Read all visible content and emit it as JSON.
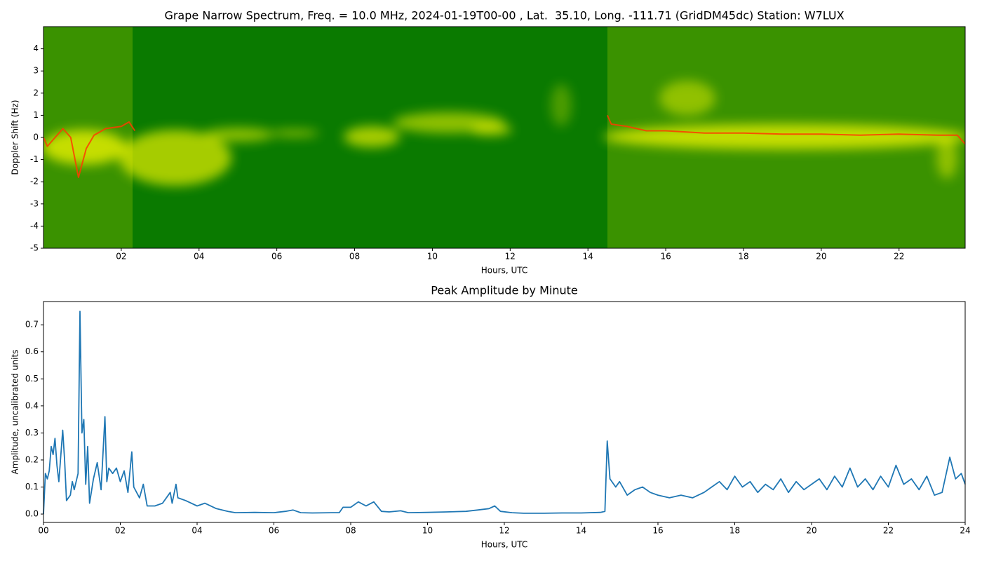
{
  "chart_data": [
    {
      "type": "spectrogram",
      "title": "Grape Narrow Spectrum, Freq. = 10.0 MHz, 2024-01-19T00-00 , Lat.  35.10, Long. -111.71 (GridDM45dc) Station: W7LUX",
      "xlabel": "Hours, UTC",
      "ylabel": "Doppler Shift (Hz)",
      "xlim": [
        0,
        23.7
      ],
      "ylim": [
        -5,
        5
      ],
      "xticks": [
        {
          "value": 2,
          "label": "02"
        },
        {
          "value": 4,
          "label": "04"
        },
        {
          "value": 6,
          "label": "06"
        },
        {
          "value": 8,
          "label": "08"
        },
        10,
        12,
        14,
        16,
        18,
        20,
        22
      ],
      "yticks": [
        -5,
        -4,
        -3,
        -2,
        -1,
        0,
        1,
        2,
        3,
        4
      ],
      "color": "#ff3a00",
      "x": [
        0,
        0.1,
        0.3,
        0.5,
        0.7,
        0.9,
        1.1,
        1.3,
        1.6,
        2.0,
        2.2,
        2.35,
        8,
        14.5,
        14.6,
        15,
        15.5,
        16,
        17,
        18,
        19,
        20,
        21,
        22,
        23,
        23.5,
        23.7
      ],
      "values": [
        0,
        -0.4,
        0,
        0.4,
        0,
        -1.8,
        -0.5,
        0.1,
        0.4,
        0.5,
        0.7,
        0.3,
        null,
        1.0,
        0.6,
        0.5,
        0.3,
        0.3,
        0.2,
        0.2,
        0.15,
        0.15,
        0.1,
        0.15,
        0.1,
        0.1,
        -0.3
      ]
    },
    {
      "type": "line",
      "title": "Peak Amplitude by Minute",
      "xlabel": "Hours, UTC",
      "ylabel": "Amplitude, uncalibrated units",
      "xlim": [
        0,
        24
      ],
      "ylim": [
        -0.031,
        0.786
      ],
      "xticks": [
        {
          "value": 0,
          "label": "00"
        },
        {
          "value": 2,
          "label": "02"
        },
        {
          "value": 4,
          "label": "04"
        },
        {
          "value": 6,
          "label": "06"
        },
        {
          "value": 8,
          "label": "08"
        },
        10,
        12,
        14,
        16,
        18,
        20,
        22,
        24
      ],
      "yticks": [
        {
          "value": 0,
          "label": "0.0"
        },
        0.1,
        0.2,
        0.3,
        0.4,
        0.5,
        0.6,
        0.7
      ],
      "color": "#1f77b4",
      "x": [
        0,
        0.05,
        0.1,
        0.15,
        0.2,
        0.25,
        0.3,
        0.35,
        0.4,
        0.5,
        0.55,
        0.6,
        0.7,
        0.75,
        0.8,
        0.9,
        0.95,
        1.0,
        1.05,
        1.1,
        1.15,
        1.2,
        1.3,
        1.4,
        1.5,
        1.6,
        1.65,
        1.7,
        1.8,
        1.9,
        2.0,
        2.1,
        2.2,
        2.3,
        2.35,
        2.5,
        2.6,
        2.7,
        2.9,
        3.1,
        3.3,
        3.35,
        3.45,
        3.5,
        3.7,
        4.0,
        4.2,
        4.5,
        4.8,
        5.0,
        5.5,
        6.0,
        6.3,
        6.5,
        6.7,
        7.0,
        7.5,
        7.7,
        7.8,
        8.0,
        8.2,
        8.4,
        8.6,
        8.8,
        9.0,
        9.3,
        9.5,
        10.0,
        10.5,
        11.0,
        11.3,
        11.6,
        11.75,
        11.9,
        12.2,
        12.5,
        13.0,
        13.5,
        14.0,
        14.5,
        14.62,
        14.68,
        14.75,
        14.9,
        15.0,
        15.2,
        15.4,
        15.6,
        15.8,
        16.0,
        16.3,
        16.6,
        16.9,
        17.2,
        17.4,
        17.6,
        17.8,
        18.0,
        18.2,
        18.4,
        18.6,
        18.8,
        19.0,
        19.2,
        19.4,
        19.6,
        19.8,
        20.0,
        20.2,
        20.4,
        20.6,
        20.8,
        21.0,
        21.2,
        21.4,
        21.6,
        21.8,
        22.0,
        22.2,
        22.4,
        22.6,
        22.8,
        23.0,
        23.2,
        23.4,
        23.6,
        23.75,
        23.9,
        24.0
      ],
      "values": [
        0,
        0.15,
        0.13,
        0.16,
        0.25,
        0.22,
        0.28,
        0.18,
        0.12,
        0.31,
        0.2,
        0.05,
        0.07,
        0.12,
        0.09,
        0.15,
        0.75,
        0.3,
        0.35,
        0.11,
        0.25,
        0.04,
        0.13,
        0.19,
        0.09,
        0.36,
        0.12,
        0.17,
        0.15,
        0.17,
        0.12,
        0.16,
        0.08,
        0.23,
        0.1,
        0.06,
        0.11,
        0.03,
        0.03,
        0.04,
        0.08,
        0.04,
        0.11,
        0.06,
        0.05,
        0.03,
        0.04,
        0.02,
        0.01,
        0.005,
        0.006,
        0.005,
        0.01,
        0.015,
        0.005,
        0.004,
        0.005,
        0.005,
        0.025,
        0.025,
        0.045,
        0.03,
        0.045,
        0.01,
        0.008,
        0.012,
        0.005,
        0.006,
        0.008,
        0.01,
        0.015,
        0.02,
        0.03,
        0.01,
        0.005,
        0.003,
        0.003,
        0.004,
        0.004,
        0.006,
        0.01,
        0.27,
        0.13,
        0.1,
        0.12,
        0.07,
        0.09,
        0.1,
        0.08,
        0.07,
        0.06,
        0.07,
        0.06,
        0.08,
        0.1,
        0.12,
        0.09,
        0.14,
        0.1,
        0.12,
        0.08,
        0.11,
        0.09,
        0.13,
        0.08,
        0.12,
        0.09,
        0.11,
        0.13,
        0.09,
        0.14,
        0.1,
        0.17,
        0.1,
        0.13,
        0.09,
        0.14,
        0.1,
        0.18,
        0.11,
        0.13,
        0.09,
        0.14,
        0.07,
        0.08,
        0.21,
        0.13,
        0.15,
        0.11
      ]
    }
  ]
}
